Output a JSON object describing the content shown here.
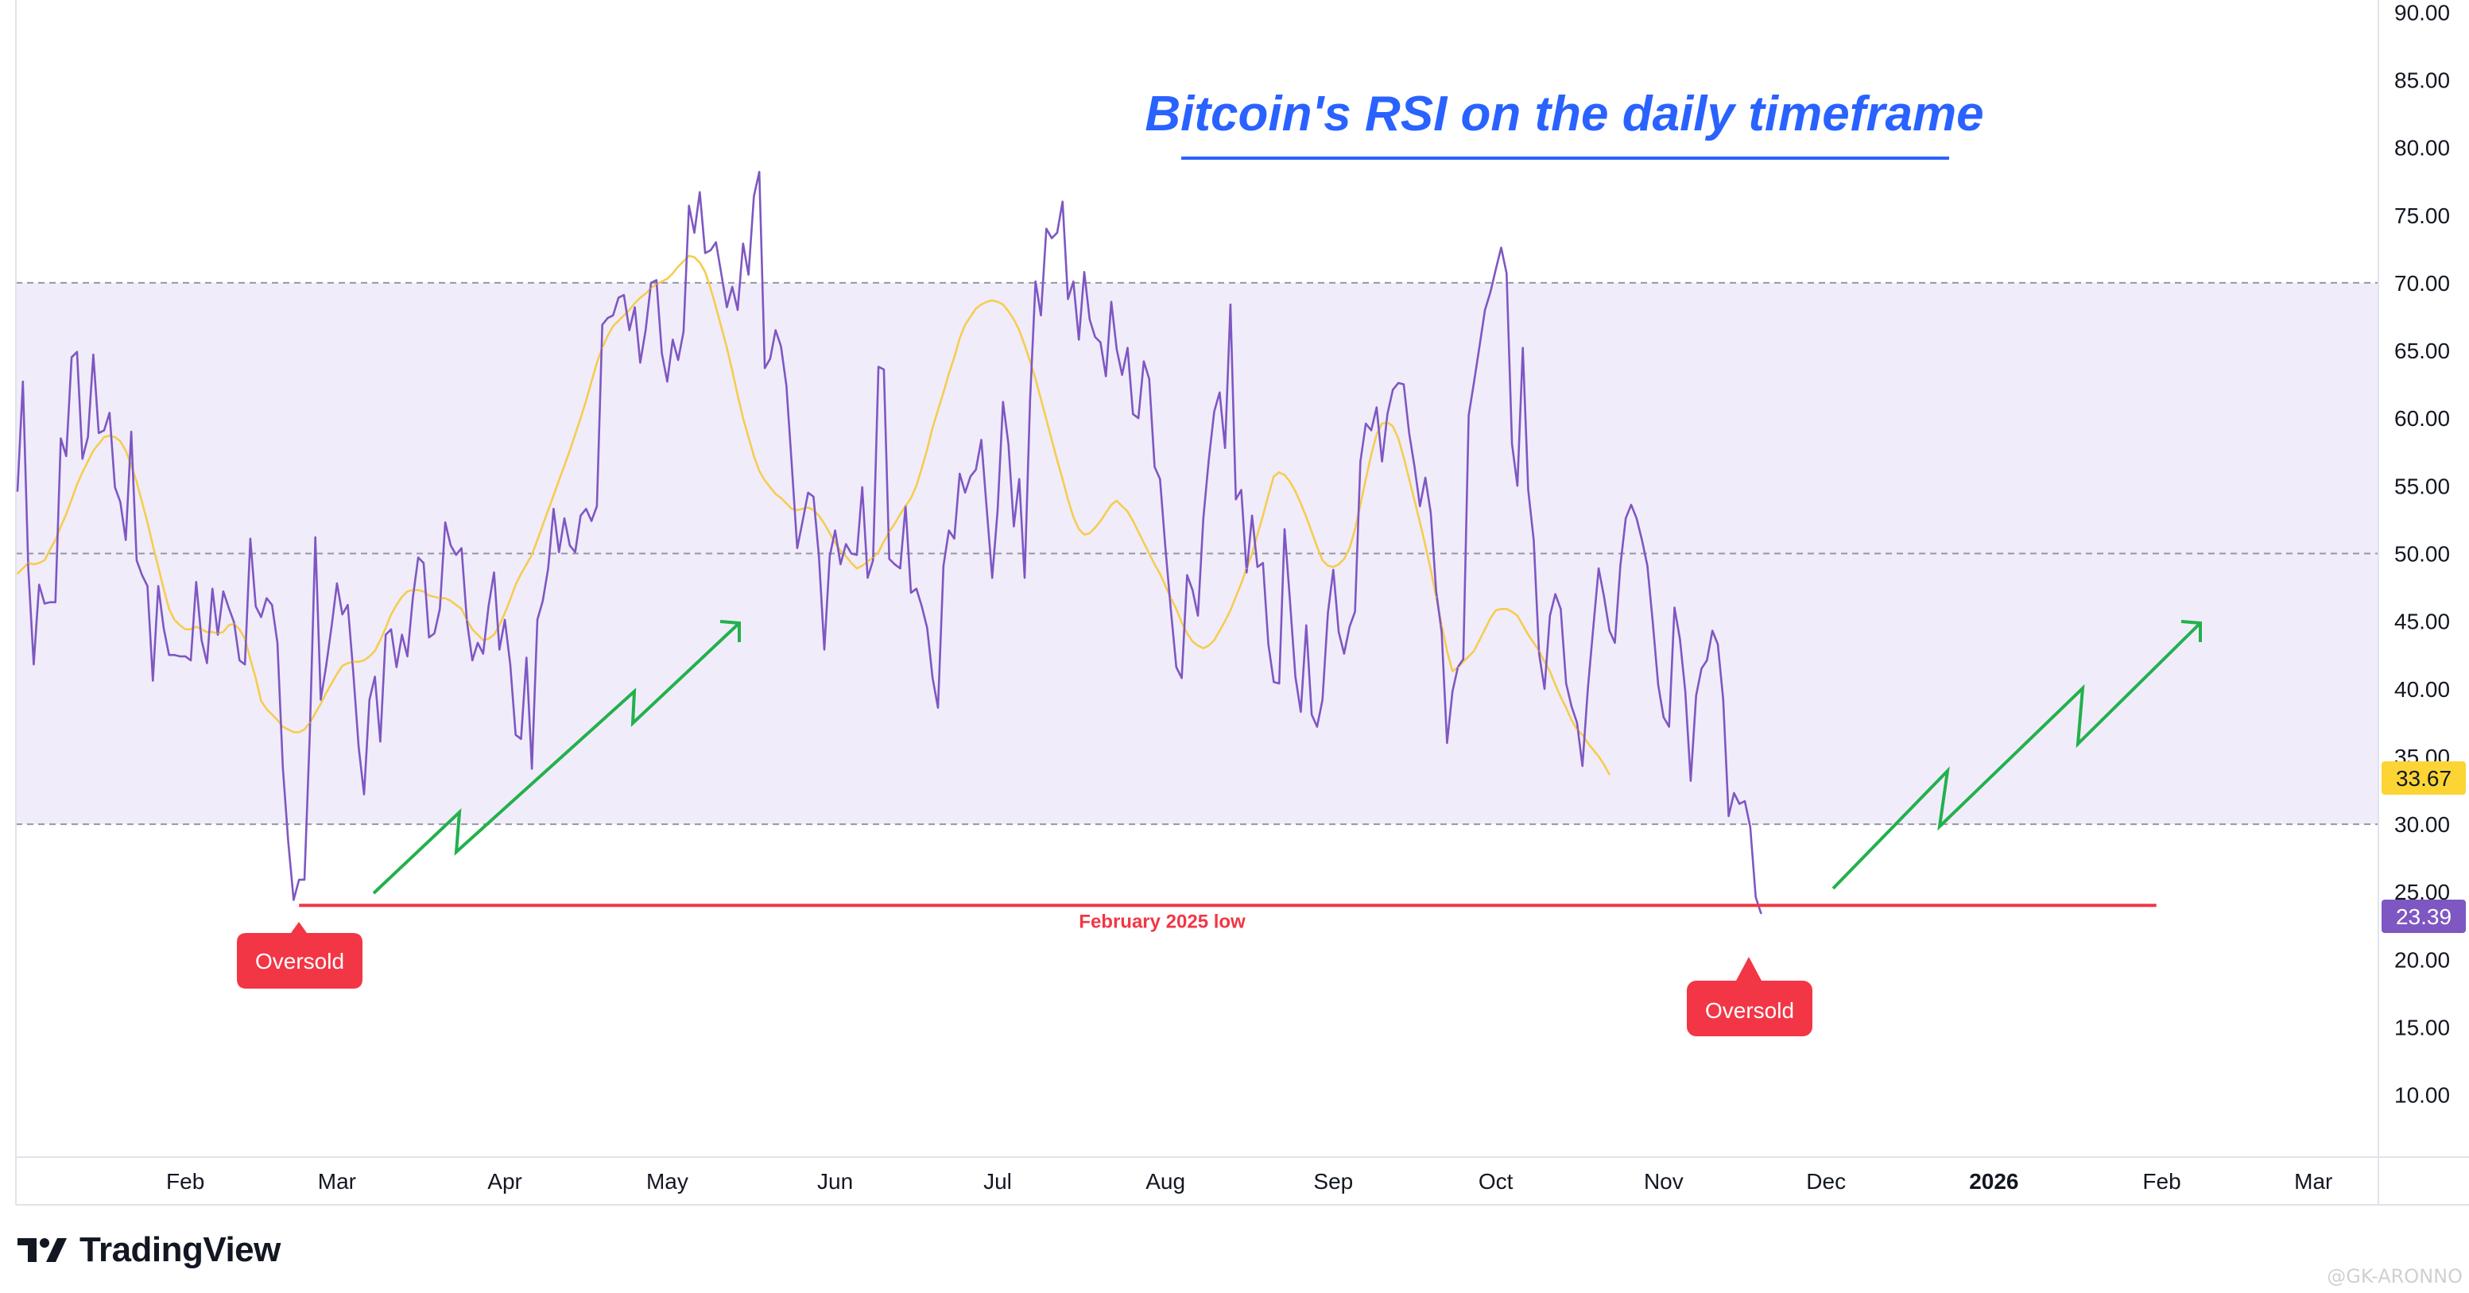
{
  "title": "Bitcoin's RSI on the daily timeframe",
  "brand": {
    "name": "TradingView"
  },
  "watermark": "@GK-ARONNO",
  "colors": {
    "rsi": "#7e57c2",
    "rsi_ma": "#f5cd50",
    "band_fill": "#f1ecfa",
    "level_line": "#9598a1",
    "support": "#f23645",
    "arrows": "#22b14c",
    "title": "#2962ff"
  },
  "annotations": {
    "support_label": "February 2025 low",
    "oversold_1": "Oversold",
    "oversold_2": "Oversold"
  },
  "chart_data": {
    "type": "line",
    "title": "Bitcoin's RSI on the daily timeframe",
    "xlabel": "",
    "ylabel": "",
    "ylim": [
      5.4,
      90.9
    ],
    "yticks": [
      "90.00",
      "85.00",
      "80.00",
      "75.00",
      "70.00",
      "65.00",
      "60.00",
      "55.00",
      "50.00",
      "45.00",
      "40.00",
      "35.00",
      "30.00",
      "25.00",
      "20.00",
      "15.00",
      "10.00"
    ],
    "xticks": [
      "Feb",
      "Mar",
      "Apr",
      "May",
      "Jun",
      "Jul",
      "Aug",
      "Sep",
      "Oct",
      "Nov",
      "Dec",
      "2026",
      "Feb",
      "Mar"
    ],
    "band": [
      30,
      70
    ],
    "levels": [
      70,
      50,
      30
    ],
    "support_level": 24,
    "grid": false,
    "last_values": {
      "rsi": "23.39",
      "rsi_ma": "33.67"
    },
    "series": [
      {
        "role": "rsi",
        "x_start": "2025-01-01",
        "values": [
          54.6,
          62.7,
          48.9,
          41.8,
          47.7,
          46.3,
          46.4,
          46.4,
          58.5,
          57.2,
          64.5,
          64.9,
          57.0,
          58.6,
          64.7,
          58.9,
          59.1,
          60.4,
          54.9,
          53.8,
          51.0,
          59.0,
          49.5,
          48.4,
          47.6,
          40.6,
          47.6,
          44.5,
          42.5,
          42.5,
          42.4,
          42.4,
          42.1,
          47.9,
          43.6,
          41.9,
          47.4,
          44.0,
          47.2,
          46.0,
          44.9,
          42.1,
          41.8,
          51.1,
          46.1,
          45.3,
          46.7,
          46.2,
          43.4,
          34.2,
          28.7,
          24.4,
          25.9,
          25.9,
          36.8,
          51.2,
          39.2,
          41.7,
          44.6,
          47.8,
          45.5,
          46.2,
          41.3,
          35.7,
          32.2,
          39.2,
          40.9,
          36.1,
          44.0,
          44.4,
          41.6,
          44.0,
          42.4,
          46.7,
          49.7,
          49.3,
          43.8,
          44.1,
          45.9,
          52.3,
          50.6,
          49.9,
          50.4,
          45.0,
          42.1,
          43.4,
          42.6,
          46.1,
          48.6,
          42.9,
          45.1,
          41.8,
          36.6,
          36.3,
          42.3,
          34.1,
          45.1,
          46.5,
          48.9,
          53.3,
          50.1,
          52.6,
          50.6,
          50.1,
          52.8,
          53.3,
          52.4,
          53.5,
          66.9,
          67.4,
          67.6,
          68.9,
          69.1,
          66.5,
          68.2,
          64.1,
          66.5,
          70.0,
          70.2,
          64.8,
          62.7,
          65.8,
          64.3,
          66.4,
          75.7,
          73.7,
          76.7,
          72.2,
          72.4,
          73.0,
          70.6,
          68.2,
          69.7,
          68.0,
          72.9,
          70.6,
          76.4,
          78.2,
          63.7,
          64.4,
          66.5,
          65.3,
          62.4,
          56.5,
          50.4,
          52.4,
          54.5,
          54.2,
          49.8,
          42.9,
          49.8,
          51.7,
          49.2,
          50.7,
          50.0,
          49.9,
          54.9,
          48.2,
          49.5,
          63.8,
          63.6,
          49.6,
          49.2,
          48.9,
          53.5,
          47.1,
          47.4,
          46.1,
          44.5,
          40.8,
          38.6,
          49.1,
          51.7,
          51.1,
          55.9,
          54.5,
          55.7,
          56.2,
          58.4,
          53.3,
          48.2,
          53.2,
          61.2,
          58.1,
          52.0,
          55.5,
          48.2,
          61.3,
          70.1,
          67.6,
          74.0,
          73.3,
          73.7,
          76.0,
          68.8,
          70.1,
          65.8,
          70.8,
          67.3,
          66.0,
          65.6,
          63.1,
          68.6,
          65.1,
          63.2,
          65.2,
          60.3,
          60.0,
          64.2,
          62.9,
          56.4,
          55.5,
          50.4,
          45.8,
          41.6,
          40.8,
          48.4,
          47.3,
          45.4,
          52.6,
          56.9,
          60.5,
          61.9,
          57.8,
          68.4,
          54.0,
          54.7,
          48.6,
          52.8,
          49.0,
          49.3,
          43.3,
          40.5,
          40.4,
          51.8,
          46.5,
          40.9,
          38.3,
          44.7,
          38.1,
          37.2,
          39.2,
          45.6,
          48.8,
          44.2,
          42.6,
          44.6,
          45.7,
          56.8,
          59.6,
          59.1,
          60.8,
          56.8,
          60.3,
          62.1,
          62.6,
          62.5,
          58.9,
          56.4,
          53.5,
          55.6,
          53.0,
          47.2,
          44.2,
          36.0,
          39.8,
          41.6,
          42.2,
          60.2,
          62.7,
          65.3,
          68.0,
          69.3,
          71.0,
          72.6,
          70.7,
          58.1,
          55.0,
          65.2,
          54.7,
          51.0,
          42.6,
          40.0,
          45.4,
          47.0,
          45.9,
          40.4,
          38.7,
          37.5,
          34.3,
          40.0,
          44.5,
          48.9,
          46.8,
          44.3,
          43.4,
          49.1,
          52.6,
          53.6,
          52.6,
          51.0,
          49.1,
          44.9,
          40.3,
          37.9,
          37.2,
          46.0,
          43.7,
          39.8,
          33.2,
          39.5,
          41.5,
          42.1,
          44.3,
          43.3,
          39.2,
          30.6,
          32.3,
          31.5,
          31.7,
          29.8,
          24.6,
          23.39
        ]
      },
      {
        "role": "rsi_ma",
        "x_start": "2025-01-01",
        "values": [
          48.5,
          48.9,
          49.3,
          49.2,
          49.3,
          49.5,
          50.3,
          51.0,
          52.0,
          52.9,
          54.0,
          55.1,
          56.0,
          56.8,
          57.6,
          58.1,
          58.6,
          58.7,
          58.6,
          58.3,
          57.6,
          56.5,
          55.3,
          53.8,
          52.3,
          50.6,
          49.0,
          47.4,
          45.9,
          45.1,
          44.7,
          44.4,
          44.4,
          44.6,
          44.4,
          44.2,
          44.2,
          44.1,
          44.2,
          44.7,
          44.8,
          44.4,
          43.7,
          42.2,
          40.8,
          39.1,
          38.5,
          38.1,
          37.7,
          37.2,
          37.0,
          36.8,
          36.8,
          37.0,
          37.5,
          38.2,
          38.9,
          39.7,
          40.4,
          41.1,
          41.7,
          41.9,
          42.0,
          42.0,
          42.1,
          42.4,
          42.8,
          43.6,
          44.5,
          45.5,
          46.2,
          46.8,
          47.2,
          47.3,
          47.3,
          47.2,
          46.9,
          46.8,
          46.7,
          46.7,
          46.5,
          46.2,
          45.9,
          45.1,
          44.4,
          44.0,
          43.6,
          43.7,
          44.0,
          44.7,
          45.6,
          46.6,
          47.7,
          48.5,
          49.2,
          49.9,
          51.0,
          52.1,
          53.2,
          54.3,
          55.4,
          56.5,
          57.6,
          58.8,
          60.0,
          61.3,
          62.7,
          64.1,
          65.2,
          66.1,
          66.8,
          67.2,
          67.6,
          68.0,
          68.5,
          68.9,
          69.2,
          69.6,
          69.9,
          70.1,
          70.3,
          70.7,
          71.2,
          71.6,
          72.0,
          71.9,
          71.5,
          70.8,
          69.6,
          68.2,
          66.7,
          65.2,
          63.5,
          61.7,
          60.0,
          58.6,
          57.2,
          56.1,
          55.4,
          54.9,
          54.4,
          54.1,
          53.7,
          53.3,
          53.2,
          53.3,
          53.4,
          53.2,
          52.8,
          52.2,
          51.5,
          50.8,
          50.2,
          49.8,
          49.3,
          48.9,
          49.1,
          49.4,
          49.7,
          50.1,
          50.9,
          51.6,
          52.2,
          52.9,
          53.5,
          54.1,
          55.0,
          56.3,
          57.7,
          59.3,
          60.6,
          61.9,
          63.3,
          64.5,
          65.9,
          66.9,
          67.5,
          68.1,
          68.4,
          68.6,
          68.7,
          68.6,
          68.4,
          67.9,
          67.3,
          66.5,
          65.4,
          64.2,
          62.9,
          61.4,
          59.9,
          58.4,
          56.9,
          55.5,
          54.0,
          52.7,
          51.8,
          51.4,
          51.5,
          51.9,
          52.4,
          53.0,
          53.6,
          53.9,
          53.5,
          53.1,
          52.4,
          51.6,
          50.8,
          50.0,
          49.2,
          48.5,
          47.6,
          46.7,
          45.9,
          44.9,
          44.1,
          43.5,
          43.2,
          43.0,
          43.2,
          43.6,
          44.3,
          45.0,
          45.8,
          46.8,
          47.8,
          48.9,
          50.0,
          51.4,
          52.8,
          54.3,
          55.7,
          56.0,
          55.8,
          55.3,
          54.6,
          53.7,
          52.7,
          51.6,
          50.5,
          49.5,
          49.1,
          49.0,
          49.2,
          49.6,
          50.4,
          51.8,
          53.6,
          55.5,
          57.3,
          58.8,
          59.6,
          59.7,
          59.4,
          58.5,
          57.1,
          55.5,
          53.9,
          52.3,
          50.6,
          48.8,
          46.8,
          44.7,
          42.8,
          41.3,
          41.6,
          42.0,
          42.4,
          42.8,
          43.6,
          44.4,
          45.2,
          45.8,
          45.9,
          45.9,
          45.7,
          45.4,
          44.7,
          44.0,
          43.4,
          42.8,
          42.0,
          41.3,
          40.3,
          39.4,
          38.6,
          37.7,
          37.0,
          36.6,
          36.0,
          35.5,
          35.0,
          34.4,
          33.67
        ]
      }
    ]
  }
}
